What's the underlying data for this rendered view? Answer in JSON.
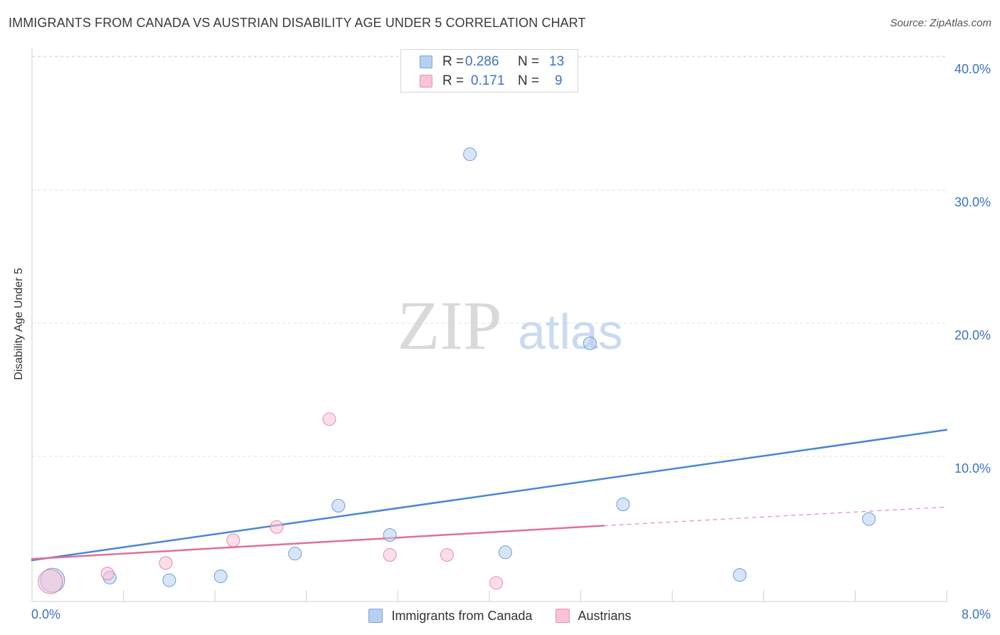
{
  "title": "IMMIGRANTS FROM CANADA VS AUSTRIAN DISABILITY AGE UNDER 5 CORRELATION CHART",
  "source": "Source: ZipAtlas.com",
  "watermark": {
    "zip": "ZIP",
    "atlas": "atlas"
  },
  "legend_top": {
    "rows": [
      {
        "r_label": "R =",
        "r_value": "0.286",
        "n_label": "N =",
        "n_value": "13"
      },
      {
        "r_label": "R =",
        "r_value": "0.171",
        "n_label": "N =",
        "n_value": "9"
      }
    ]
  },
  "chart_data": {
    "type": "scatter",
    "title": "IMMIGRANTS FROM CANADA VS AUSTRIAN DISABILITY AGE UNDER 5 CORRELATION CHART",
    "xlabel": "",
    "ylabel": "Disability Age Under 5",
    "xlim": [
      0,
      8
    ],
    "ylim": [
      0,
      40
    ],
    "x_tick_labels": [
      "0.0%",
      "8.0%"
    ],
    "y_tick_labels": [
      "10.0%",
      "20.0%",
      "30.0%",
      "40.0%"
    ],
    "y_ticks": [
      10,
      20,
      30,
      40
    ],
    "grid": true,
    "legend_position": "bottom",
    "series": [
      {
        "name": "Immigrants from Canada",
        "color": "#4a86d8",
        "fill": "#b7d0f1",
        "points": [
          {
            "x": 0.18,
            "y": 1.6,
            "big": true
          },
          {
            "x": 0.68,
            "y": 1.8
          },
          {
            "x": 1.2,
            "y": 1.6
          },
          {
            "x": 1.65,
            "y": 1.9
          },
          {
            "x": 2.3,
            "y": 3.6
          },
          {
            "x": 2.68,
            "y": 7.2
          },
          {
            "x": 3.13,
            "y": 5.0
          },
          {
            "x": 3.83,
            "y": 33.6
          },
          {
            "x": 4.14,
            "y": 3.7
          },
          {
            "x": 4.88,
            "y": 19.4
          },
          {
            "x": 5.17,
            "y": 7.3
          },
          {
            "x": 6.19,
            "y": 2.0
          },
          {
            "x": 7.32,
            "y": 6.2
          }
        ],
        "trend": {
          "x0": 0.0,
          "y0": 3.1,
          "x1": 8.0,
          "y1": 12.9
        }
      },
      {
        "name": "Austrians",
        "color": "#e07098",
        "fill": "#f8c3d3",
        "points": [
          {
            "x": 0.16,
            "y": 1.5,
            "big": true
          },
          {
            "x": 0.66,
            "y": 2.1
          },
          {
            "x": 1.17,
            "y": 2.9
          },
          {
            "x": 1.76,
            "y": 4.6
          },
          {
            "x": 2.14,
            "y": 5.6
          },
          {
            "x": 2.6,
            "y": 13.7
          },
          {
            "x": 3.13,
            "y": 3.5
          },
          {
            "x": 3.63,
            "y": 3.5
          },
          {
            "x": 4.06,
            "y": 1.4
          }
        ],
        "trend": {
          "x0": 0.0,
          "y0": 3.2,
          "x1": 5.0,
          "y1": 5.7,
          "x_dash_end": 8.0,
          "y_dash_end": 7.1
        }
      }
    ]
  }
}
